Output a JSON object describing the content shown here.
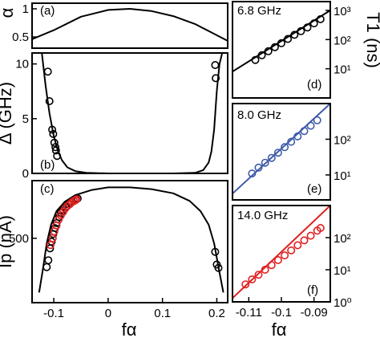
{
  "figure": {
    "x_axis_label": "fα",
    "colors": {
      "black": "#000000",
      "blue": "#3d5aa8",
      "red": "#e02020"
    }
  },
  "chart_data": [
    {
      "id": "a",
      "type": "line",
      "panel_label": "(a)",
      "ylabel": "α",
      "xlim": [
        -0.14,
        0.22
      ],
      "ylim": [
        0.3,
        1.1
      ],
      "yticks": [
        0.5,
        1
      ],
      "ytick_labels": [
        "0.5",
        "1"
      ],
      "series": [
        {
          "x": [
            -0.14,
            -0.1,
            -0.05,
            0.0,
            0.04,
            0.08,
            0.12,
            0.16,
            0.2,
            0.22
          ],
          "y": [
            0.46,
            0.62,
            0.86,
            0.98,
            1.0,
            0.96,
            0.87,
            0.73,
            0.53,
            0.43
          ]
        }
      ]
    },
    {
      "id": "b",
      "type": "scatter",
      "panel_label": "(b)",
      "ylabel": "Δ (GHz)",
      "xlim": [
        -0.14,
        0.22
      ],
      "ylim": [
        0,
        11
      ],
      "yticks": [
        0,
        5,
        10
      ],
      "ytick_labels": [
        "0",
        "5",
        "10"
      ],
      "fit": {
        "x": [
          -0.122,
          -0.115,
          -0.108,
          -0.1,
          -0.092,
          -0.085,
          -0.075,
          -0.06,
          -0.04,
          0.0,
          0.12,
          0.16,
          0.175,
          0.185,
          0.19,
          0.195,
          0.2,
          0.205,
          0.21
        ],
        "y": [
          11.0,
          8.0,
          5.5,
          3.4,
          2.0,
          1.2,
          0.55,
          0.2,
          0.05,
          0.0,
          0.0,
          0.05,
          0.3,
          1.0,
          2.0,
          4.0,
          7.5,
          10.0,
          11.0
        ]
      },
      "points": {
        "x": [
          -0.111,
          -0.108,
          -0.103,
          -0.101,
          -0.099,
          -0.097,
          -0.096,
          -0.094,
          0.197,
          0.198
        ],
        "y": [
          9.3,
          6.6,
          4.0,
          3.6,
          2.8,
          2.4,
          2.1,
          1.6,
          9.9,
          8.7
        ]
      }
    },
    {
      "id": "c",
      "type": "scatter",
      "panel_label": "(c)",
      "ylabel": "Ip (nA)",
      "xlim": [
        -0.14,
        0.22
      ],
      "ylim": [
        120,
        840
      ],
      "yticks": [
        500
      ],
      "ytick_labels": [
        "500"
      ],
      "xticks": [
        -0.1,
        0,
        0.1,
        0.2
      ],
      "xtick_labels": [
        "-0.1",
        "0",
        "0.1",
        "0.2"
      ],
      "fit": {
        "x": [
          -0.127,
          -0.12,
          -0.113,
          -0.105,
          -0.095,
          -0.08,
          -0.06,
          -0.03,
          0.0,
          0.04,
          0.08,
          0.12,
          0.15,
          0.17,
          0.185,
          0.195,
          0.203,
          0.212
        ],
        "y": [
          180,
          320,
          470,
          580,
          660,
          715,
          755,
          785,
          800,
          800,
          790,
          765,
          720,
          660,
          580,
          470,
          330,
          180
        ]
      },
      "points_black": {
        "x": [
          -0.113,
          -0.11,
          -0.107,
          -0.104,
          -0.101,
          -0.098,
          -0.095,
          -0.09,
          -0.087,
          -0.083,
          -0.078,
          -0.073,
          -0.068,
          -0.063,
          -0.059,
          -0.056,
          0.197,
          0.2,
          0.203
        ],
        "y": [
          330,
          370,
          440,
          480,
          525,
          560,
          590,
          625,
          650,
          665,
          685,
          700,
          710,
          720,
          728,
          735,
          420,
          345,
          325
        ]
      },
      "points_red": {
        "x": [
          -0.106,
          -0.102,
          -0.099,
          -0.095,
          -0.091,
          -0.087,
          -0.083,
          -0.079,
          -0.075,
          -0.071,
          -0.067,
          -0.063,
          -0.06,
          -0.058
        ],
        "y": [
          460,
          500,
          540,
          575,
          610,
          635,
          655,
          675,
          690,
          700,
          712,
          720,
          725,
          730
        ]
      }
    },
    {
      "id": "d",
      "type": "scatter",
      "panel_label": "(d)",
      "frequency_label": "6.8 GHz",
      "ylabel": "T1 (ns)",
      "yscale": "log",
      "xlim": [
        -0.115,
        -0.085
      ],
      "ylim": [
        1,
        2000
      ],
      "yticks": [
        10,
        100,
        1000
      ],
      "ytick_labels": [
        "10¹",
        "10²",
        "10³"
      ],
      "fit": {
        "x": [
          -0.115,
          -0.085
        ],
        "y": [
          8,
          1000
        ]
      },
      "points": {
        "x": [
          -0.108,
          -0.106,
          -0.104,
          -0.102,
          -0.1,
          -0.098,
          -0.096,
          -0.094,
          -0.092,
          -0.09,
          -0.088
        ],
        "y": [
          20,
          29,
          40,
          55,
          75,
          105,
          145,
          195,
          260,
          360,
          500
        ]
      }
    },
    {
      "id": "e",
      "type": "scatter",
      "panel_label": "(e)",
      "frequency_label": "8.0 GHz",
      "yscale": "log",
      "xlim": [
        -0.115,
        -0.085
      ],
      "ylim": [
        2,
        1000
      ],
      "yticks": [
        10,
        100
      ],
      "ytick_labels": [
        "10¹",
        "10²"
      ],
      "fit": {
        "x": [
          -0.115,
          -0.085
        ],
        "y": [
          3,
          1000
        ]
      },
      "points": {
        "x": [
          -0.109,
          -0.107,
          -0.105,
          -0.103,
          -0.101,
          -0.099,
          -0.097,
          -0.095,
          -0.093,
          -0.091,
          -0.089
        ],
        "y": [
          11,
          16,
          22,
          30,
          42,
          60,
          85,
          120,
          170,
          240,
          340
        ]
      }
    },
    {
      "id": "f",
      "type": "scatter",
      "panel_label": "(f)",
      "frequency_label": "14.0 GHz",
      "yscale": "log",
      "xlim": [
        -0.115,
        -0.085
      ],
      "ylim": [
        1,
        1000
      ],
      "yticks": [
        1,
        10,
        100
      ],
      "ytick_labels": [
        "10⁰",
        "10¹",
        "10²"
      ],
      "xticks": [
        -0.11,
        -0.1,
        -0.09
      ],
      "xtick_labels": [
        "-0.11",
        "-0.1",
        "-0.09"
      ],
      "fit": {
        "x": [
          -0.115,
          -0.085
        ],
        "y": [
          1.3,
          1000
        ]
      },
      "points": {
        "x": [
          -0.111,
          -0.109,
          -0.107,
          -0.105,
          -0.103,
          -0.101,
          -0.099,
          -0.097,
          -0.095,
          -0.093,
          -0.091,
          -0.089,
          -0.088
        ],
        "y": [
          3.5,
          5,
          7,
          10,
          14,
          20,
          28,
          40,
          58,
          82,
          115,
          165,
          200
        ]
      }
    }
  ]
}
